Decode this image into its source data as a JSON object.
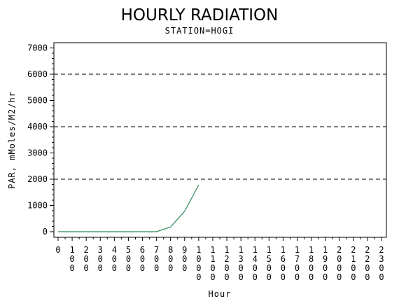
{
  "chart_data": {
    "type": "line",
    "title": "HOURLY RADIATION",
    "subtitle": "STATION=HOGI",
    "xlabel": "Hour",
    "ylabel": "PAR, mMoles/M2/hr",
    "x_tick_labels": [
      "0",
      "100",
      "200",
      "300",
      "400",
      "500",
      "600",
      "700",
      "800",
      "900",
      "1000",
      "1100",
      "1200",
      "1300",
      "1400",
      "1500",
      "1600",
      "1700",
      "1800",
      "1900",
      "2000",
      "2100",
      "2200",
      "2300"
    ],
    "y_ticks": [
      0,
      1000,
      2000,
      3000,
      4000,
      5000,
      6000,
      7000
    ],
    "y_tick_labels": [
      "0",
      "1000",
      "2000",
      "3000",
      "4000",
      "5000",
      "6000",
      "7000"
    ],
    "ylim": [
      0,
      7200
    ],
    "xlim": [
      0,
      23
    ],
    "reference_lines": [
      2000,
      4000,
      6000
    ],
    "grid": false,
    "series": [
      {
        "x": [
          0,
          1,
          2,
          3,
          4,
          5,
          6,
          7,
          8,
          9,
          10
        ],
        "y": [
          0,
          0,
          0,
          0,
          0,
          0,
          0,
          0,
          180,
          780,
          1780
        ],
        "color": "#2e8b57"
      }
    ]
  }
}
